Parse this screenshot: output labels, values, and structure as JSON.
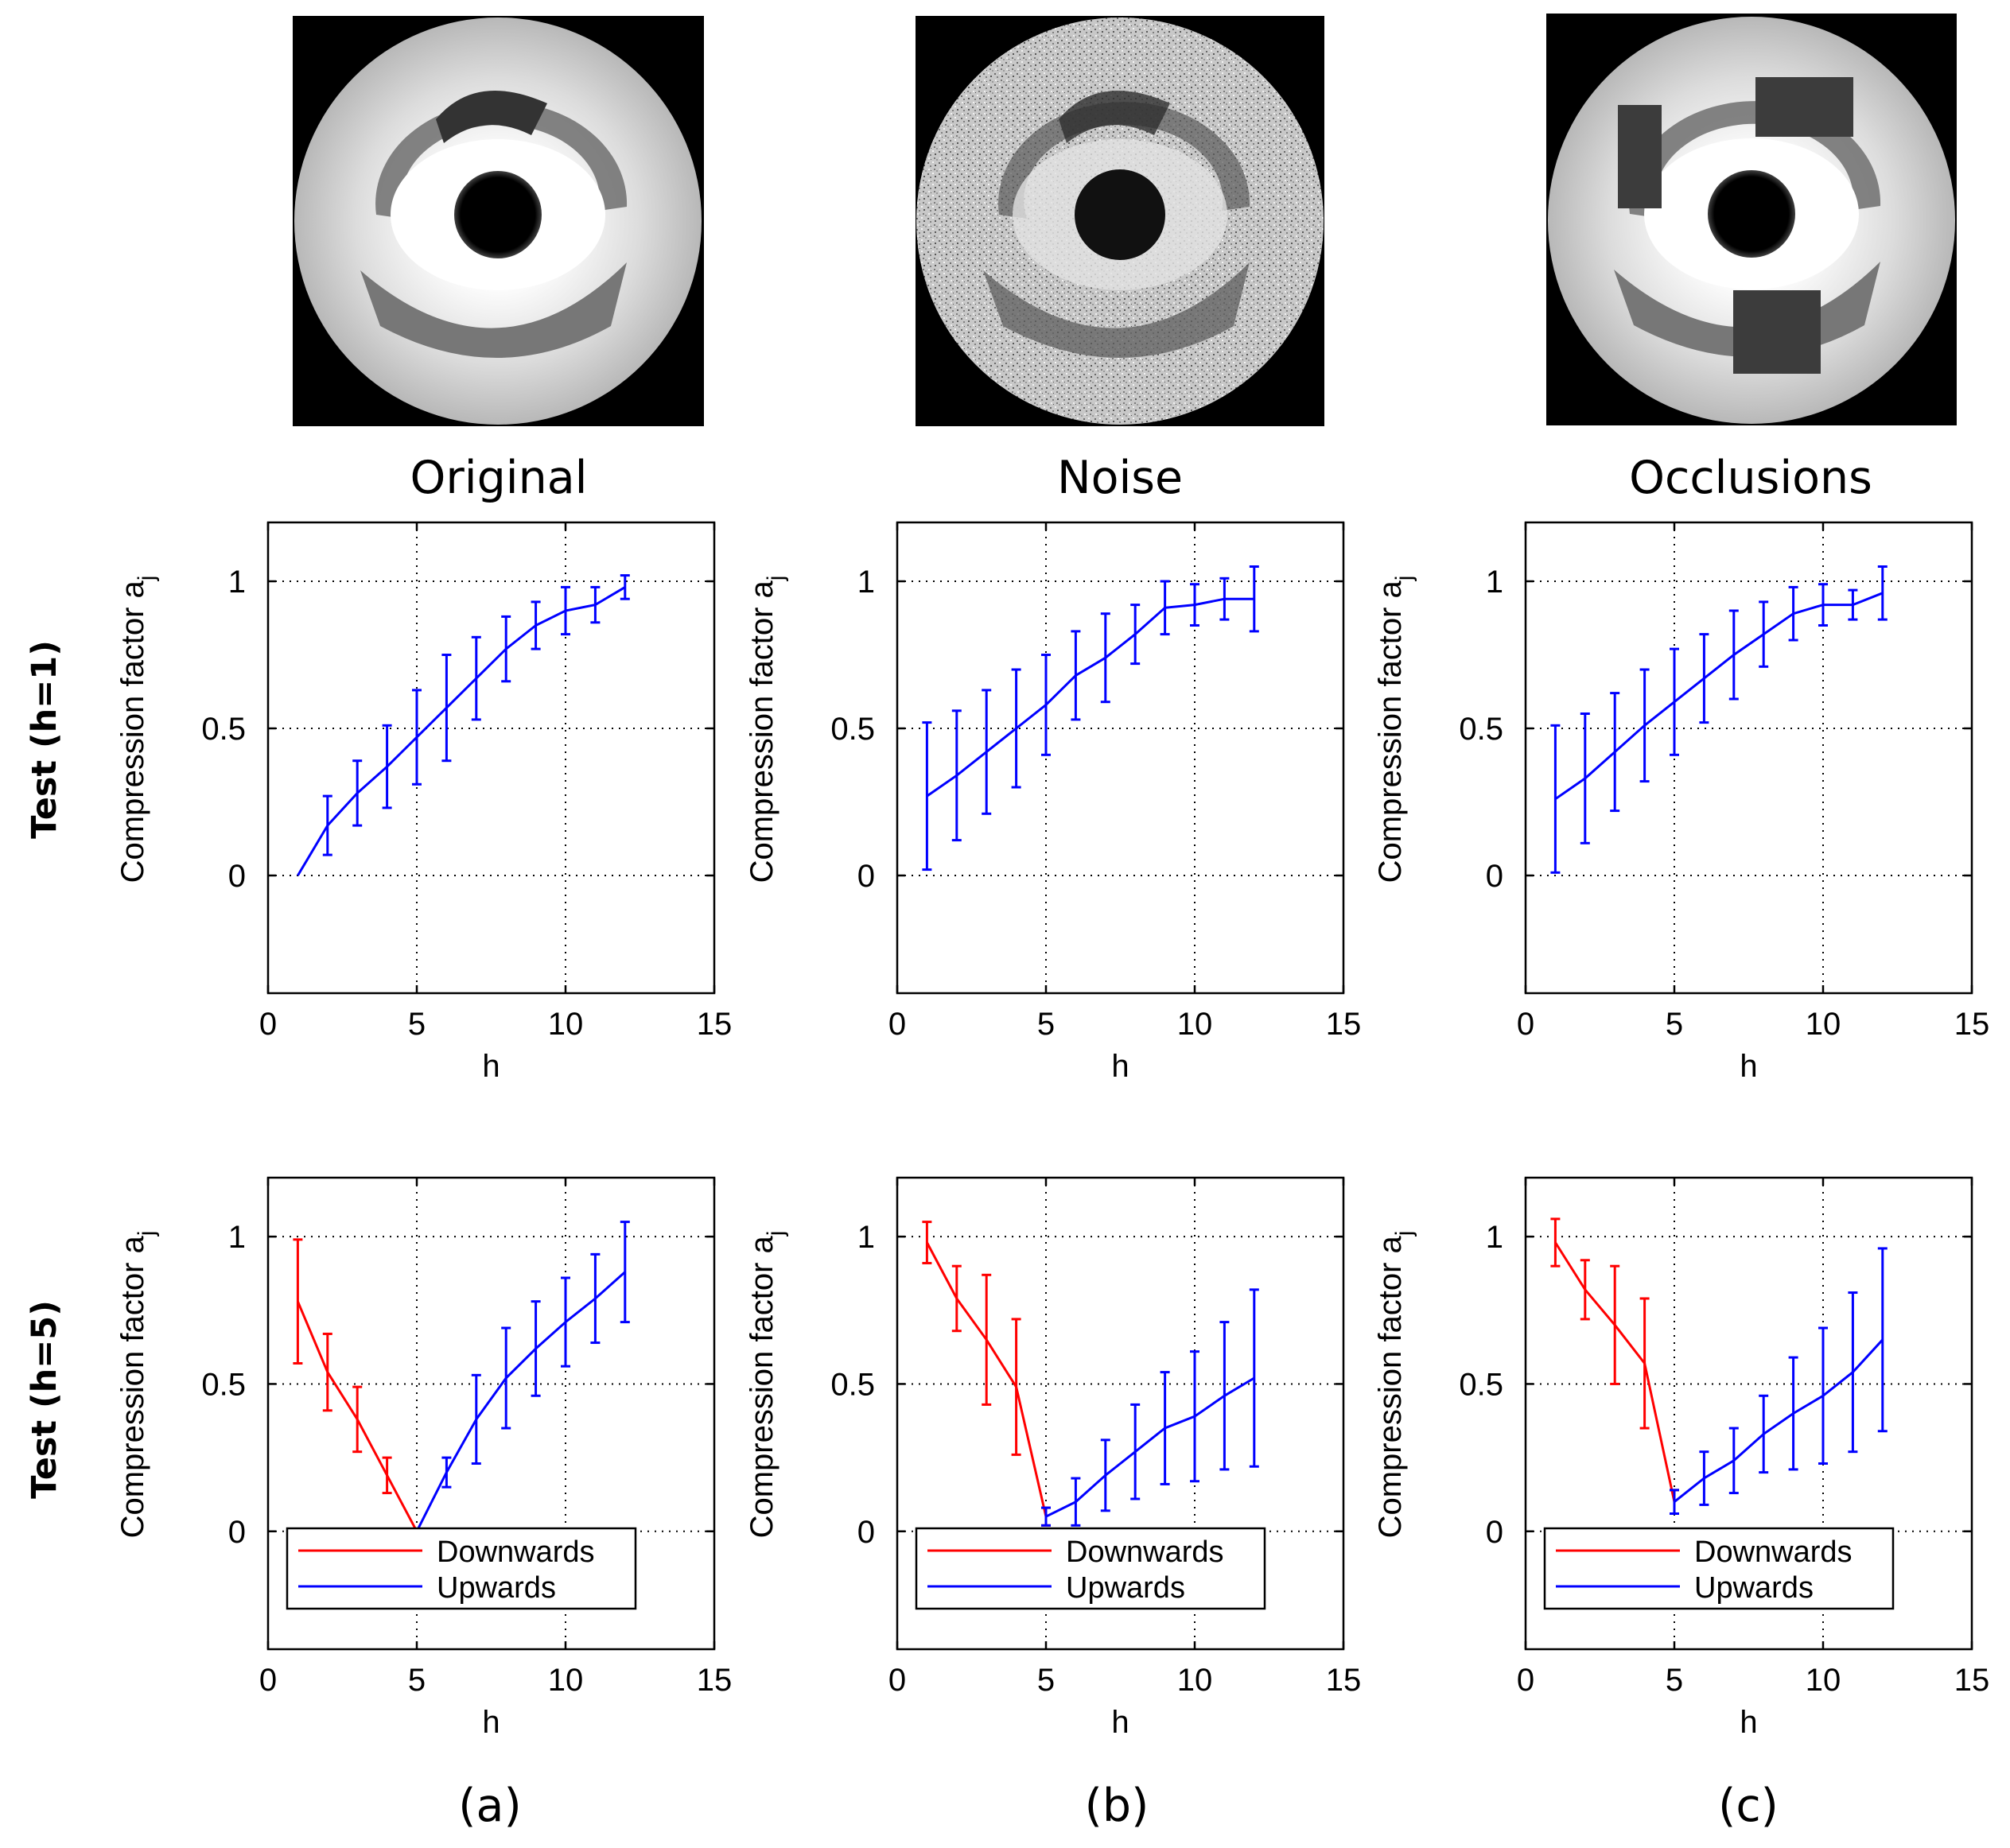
{
  "columns": [
    {
      "title": "Original",
      "caption": "(a)"
    },
    {
      "title": "Noise",
      "caption": "(b)"
    },
    {
      "title": "Occlusions",
      "caption": "(c)"
    }
  ],
  "rows": [
    {
      "label": "Test (h=1)"
    },
    {
      "label": "Test (h=5)"
    }
  ],
  "colors": {
    "downwards": "#ff0000",
    "upwards": "#0000ff",
    "axis": "#000000",
    "image_bg": "#000000"
  },
  "chart_data": [
    {
      "type": "line",
      "panel": "original-h1",
      "xlabel": "h",
      "ylabel": "Compression factor a",
      "ylabel_sub": "j",
      "xlim": [
        0,
        15
      ],
      "ylim": [
        -0.4,
        1.2
      ],
      "xticks": [
        0,
        5,
        10,
        15
      ],
      "yticks": [
        0,
        0.5,
        1
      ],
      "grid": true,
      "legend": null,
      "series": [
        {
          "name": "Upwards",
          "color": "#0000ff",
          "x": [
            1,
            2,
            3,
            4,
            5,
            6,
            7,
            8,
            9,
            10,
            11,
            12
          ],
          "y": [
            0,
            0.17,
            0.28,
            0.37,
            0.47,
            0.57,
            0.67,
            0.77,
            0.85,
            0.9,
            0.92,
            0.98
          ],
          "err": [
            0,
            0.1,
            0.11,
            0.14,
            0.16,
            0.18,
            0.14,
            0.11,
            0.08,
            0.08,
            0.06,
            0.04
          ]
        }
      ]
    },
    {
      "type": "line",
      "panel": "noise-h1",
      "xlabel": "h",
      "ylabel": "Compression factor a",
      "ylabel_sub": "j",
      "xlim": [
        0,
        15
      ],
      "ylim": [
        -0.4,
        1.2
      ],
      "xticks": [
        0,
        5,
        10,
        15
      ],
      "yticks": [
        0,
        0.5,
        1
      ],
      "grid": true,
      "legend": null,
      "series": [
        {
          "name": "Upwards",
          "color": "#0000ff",
          "x": [
            1,
            2,
            3,
            4,
            5,
            6,
            7,
            8,
            9,
            10,
            11,
            12
          ],
          "y": [
            0.27,
            0.34,
            0.42,
            0.5,
            0.58,
            0.68,
            0.74,
            0.82,
            0.91,
            0.92,
            0.94,
            0.94
          ],
          "err": [
            0.25,
            0.22,
            0.21,
            0.2,
            0.17,
            0.15,
            0.15,
            0.1,
            0.09,
            0.07,
            0.07,
            0.11
          ]
        }
      ]
    },
    {
      "type": "line",
      "panel": "occlusions-h1",
      "xlabel": "h",
      "ylabel": "Compression factor a",
      "ylabel_sub": "j",
      "xlim": [
        0,
        15
      ],
      "ylim": [
        -0.4,
        1.2
      ],
      "xticks": [
        0,
        5,
        10,
        15
      ],
      "yticks": [
        0,
        0.5,
        1
      ],
      "grid": true,
      "legend": null,
      "series": [
        {
          "name": "Upwards",
          "color": "#0000ff",
          "x": [
            1,
            2,
            3,
            4,
            5,
            6,
            7,
            8,
            9,
            10,
            11,
            12
          ],
          "y": [
            0.26,
            0.33,
            0.42,
            0.51,
            0.59,
            0.67,
            0.75,
            0.82,
            0.89,
            0.92,
            0.92,
            0.96
          ],
          "err": [
            0.25,
            0.22,
            0.2,
            0.19,
            0.18,
            0.15,
            0.15,
            0.11,
            0.09,
            0.07,
            0.05,
            0.09
          ]
        }
      ]
    },
    {
      "type": "line",
      "panel": "original-h5",
      "xlabel": "h",
      "ylabel": "Compression factor a",
      "ylabel_sub": "j",
      "xlim": [
        0,
        15
      ],
      "ylim": [
        -0.4,
        1.2
      ],
      "xticks": [
        0,
        5,
        10,
        15
      ],
      "yticks": [
        0,
        0.5,
        1
      ],
      "grid": true,
      "legend": {
        "position": "bottom-left",
        "entries": [
          "Downwards",
          "Upwards"
        ]
      },
      "series": [
        {
          "name": "Downwards",
          "color": "#ff0000",
          "x": [
            1,
            2,
            3,
            4,
            5
          ],
          "y": [
            0.78,
            0.54,
            0.38,
            0.19,
            0
          ],
          "err": [
            0.21,
            0.13,
            0.11,
            0.06,
            0
          ]
        },
        {
          "name": "Upwards",
          "color": "#0000ff",
          "x": [
            5,
            6,
            7,
            8,
            9,
            10,
            11,
            12
          ],
          "y": [
            0,
            0.2,
            0.38,
            0.52,
            0.62,
            0.71,
            0.79,
            0.88
          ],
          "err": [
            0,
            0.05,
            0.15,
            0.17,
            0.16,
            0.15,
            0.15,
            0.17
          ]
        }
      ]
    },
    {
      "type": "line",
      "panel": "noise-h5",
      "xlabel": "h",
      "ylabel": "Compression factor a",
      "ylabel_sub": "j",
      "xlim": [
        0,
        15
      ],
      "ylim": [
        -0.4,
        1.2
      ],
      "xticks": [
        0,
        5,
        10,
        15
      ],
      "yticks": [
        0,
        0.5,
        1
      ],
      "grid": true,
      "legend": {
        "position": "bottom-left",
        "entries": [
          "Downwards",
          "Upwards"
        ]
      },
      "series": [
        {
          "name": "Downwards",
          "color": "#ff0000",
          "x": [
            1,
            2,
            3,
            4,
            5
          ],
          "y": [
            0.98,
            0.79,
            0.65,
            0.49,
            0.05
          ],
          "err": [
            0.07,
            0.11,
            0.22,
            0.23,
            0.03
          ]
        },
        {
          "name": "Upwards",
          "color": "#0000ff",
          "x": [
            5,
            6,
            7,
            8,
            9,
            10,
            11,
            12
          ],
          "y": [
            0.05,
            0.1,
            0.19,
            0.27,
            0.35,
            0.39,
            0.46,
            0.52
          ],
          "err": [
            0.03,
            0.08,
            0.12,
            0.16,
            0.19,
            0.22,
            0.25,
            0.3
          ]
        }
      ]
    },
    {
      "type": "line",
      "panel": "occlusions-h5",
      "xlabel": "h",
      "ylabel": "Compression factor a",
      "ylabel_sub": "j",
      "xlim": [
        0,
        15
      ],
      "ylim": [
        -0.4,
        1.2
      ],
      "xticks": [
        0,
        5,
        10,
        15
      ],
      "yticks": [
        0,
        0.5,
        1
      ],
      "grid": true,
      "legend": {
        "position": "bottom-left",
        "entries": [
          "Downwards",
          "Upwards"
        ]
      },
      "series": [
        {
          "name": "Downwards",
          "color": "#ff0000",
          "x": [
            1,
            2,
            3,
            4,
            5
          ],
          "y": [
            0.98,
            0.82,
            0.7,
            0.57,
            0.1
          ],
          "err": [
            0.08,
            0.1,
            0.2,
            0.22,
            0.04
          ]
        },
        {
          "name": "Upwards",
          "color": "#0000ff",
          "x": [
            5,
            6,
            7,
            8,
            9,
            10,
            11,
            12
          ],
          "y": [
            0.1,
            0.18,
            0.24,
            0.33,
            0.4,
            0.46,
            0.54,
            0.65
          ],
          "err": [
            0.04,
            0.09,
            0.11,
            0.13,
            0.19,
            0.23,
            0.27,
            0.31
          ]
        }
      ]
    }
  ]
}
